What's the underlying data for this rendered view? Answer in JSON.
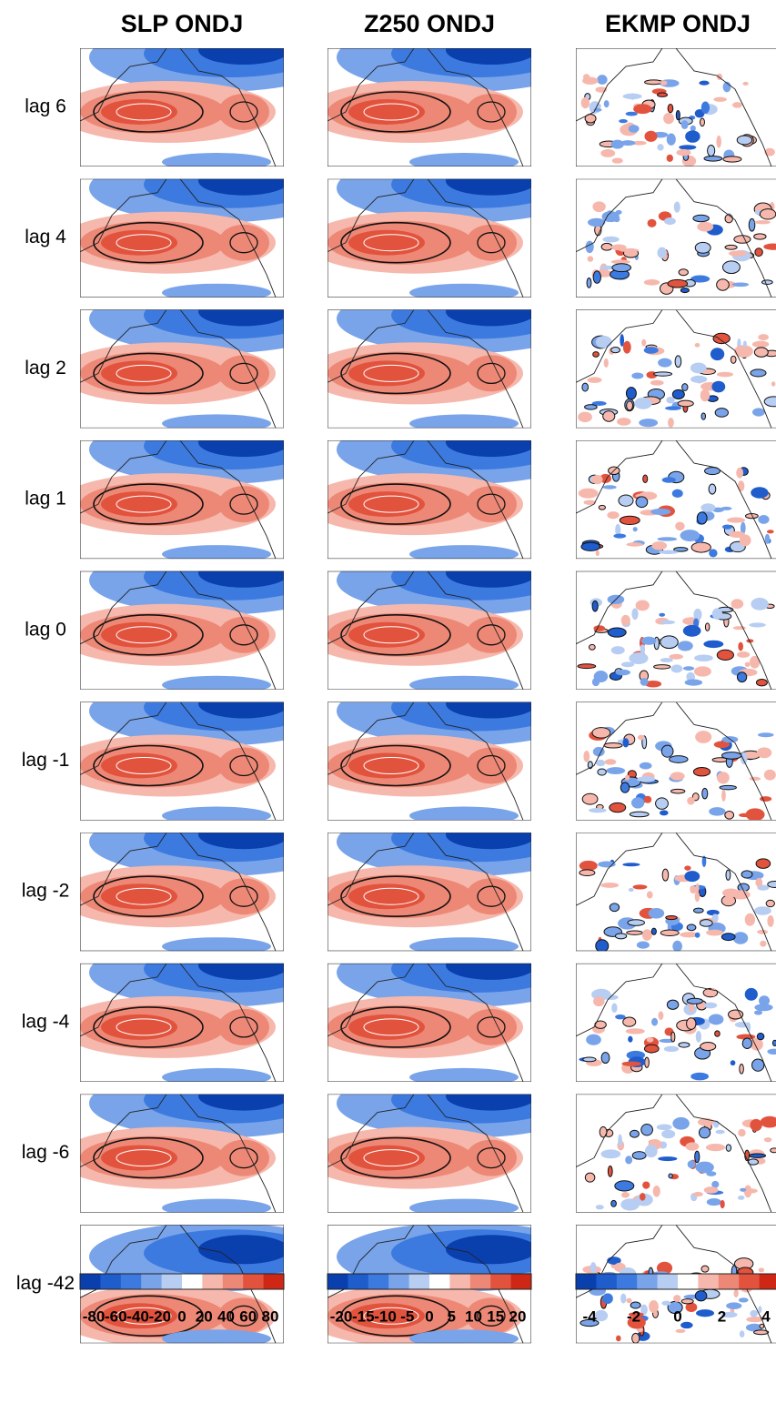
{
  "columns": [
    {
      "title": "SLP ONDJ",
      "colorbar_ticks": [
        -80,
        -60,
        -40,
        -20,
        0,
        20,
        40,
        60,
        80
      ]
    },
    {
      "title": "Z250 ONDJ",
      "colorbar_ticks": [
        -20,
        -15,
        -10,
        -5,
        0,
        5,
        10,
        15,
        20
      ]
    },
    {
      "title": "EKMP ONDJ",
      "colorbar_ticks": [
        -4,
        -2,
        0,
        2,
        4
      ]
    }
  ],
  "rows": [
    "lag 6",
    "lag 4",
    "lag 2",
    "lag 1",
    "lag 0",
    "lag -1",
    "lag -2",
    "lag -4",
    "lag -6",
    "lag -42"
  ],
  "palette": [
    "#0a3fae",
    "#1f5ccc",
    "#3c7ae0",
    "#79a4ea",
    "#b7cdf2",
    "#ffffff",
    "#f6b8ac",
    "#ee8876",
    "#e2533e",
    "#cf2716"
  ]
}
